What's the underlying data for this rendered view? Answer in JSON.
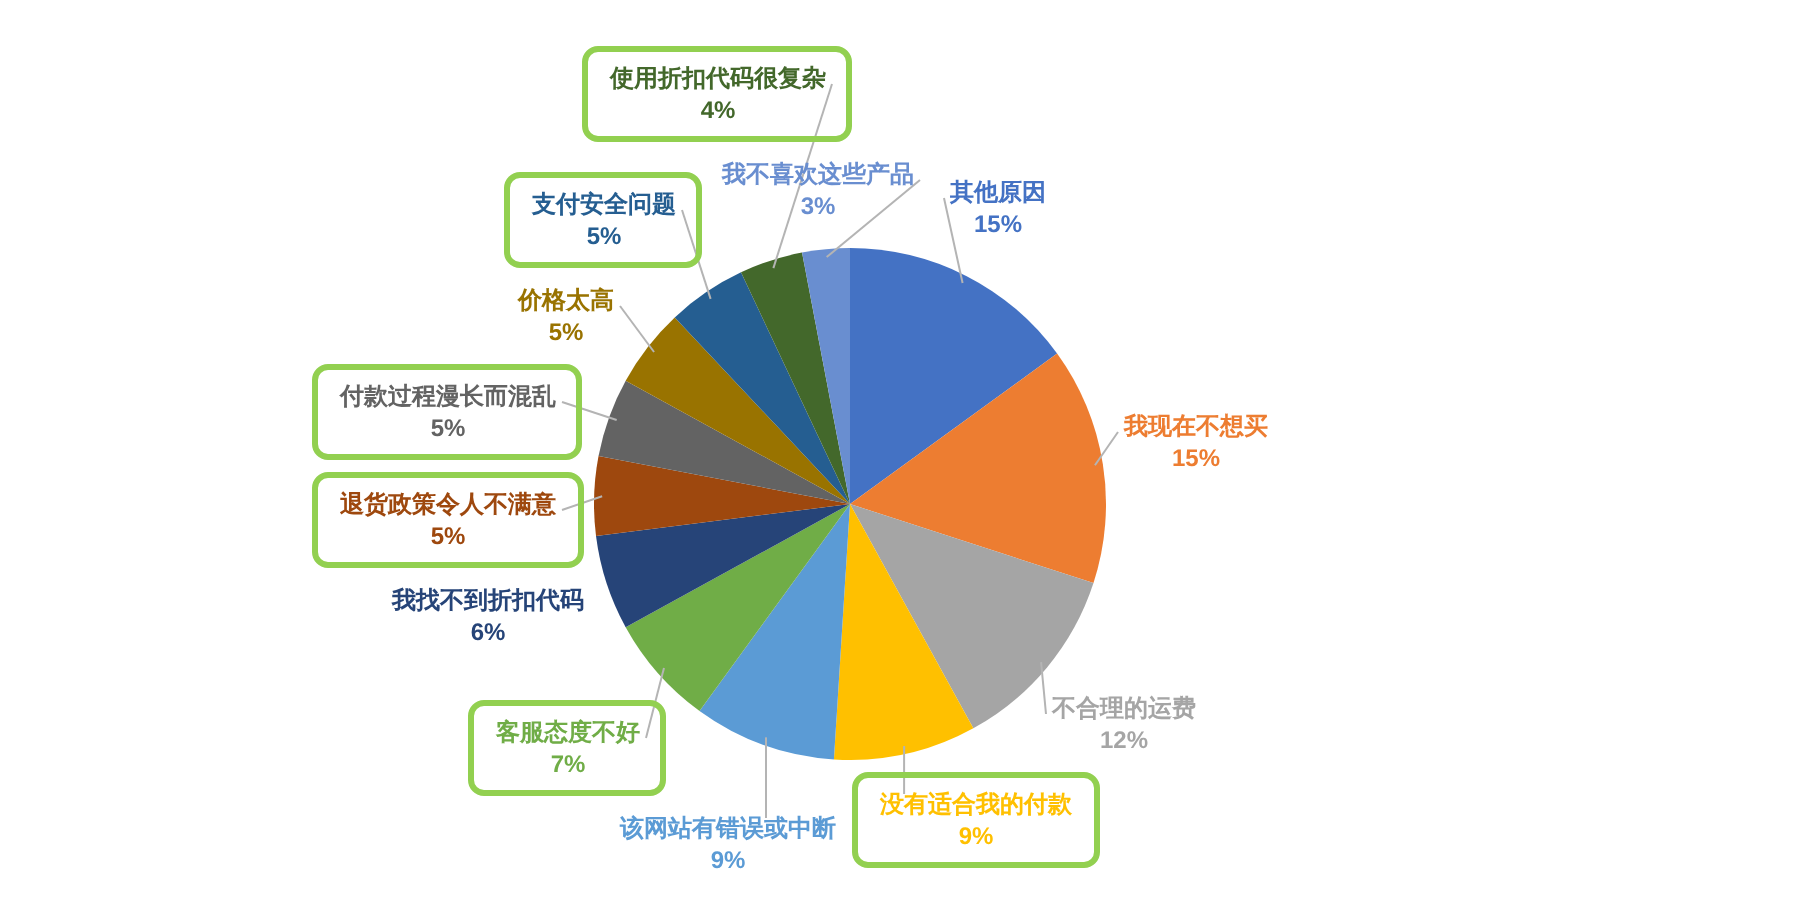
{
  "chart_data": {
    "type": "pie",
    "categories": [
      "其他原因",
      "我现在不想买",
      "不合理的运费",
      "没有适合我的付款",
      "该网站有错误或中断",
      "客服态度不好",
      "我找不到折扣代码",
      "退货政策令人不满意",
      "付款过程漫长而混乱",
      "价格太高",
      "支付安全问题",
      "使用折扣代码很复杂",
      "我不喜欢这些产品"
    ],
    "values": [
      15,
      15,
      12,
      9,
      9,
      7,
      6,
      5,
      5,
      5,
      5,
      4,
      3
    ],
    "value_labels": [
      "15%",
      "15%",
      "12%",
      "9%",
      "9%",
      "7%",
      "6%",
      "5%",
      "5%",
      "5%",
      "5%",
      "4%",
      "3%"
    ],
    "colors": [
      "#4472c4",
      "#ed7d31",
      "#a5a5a5",
      "#ffc000",
      "#5b9bd5",
      "#70ad47",
      "#264478",
      "#9e480e",
      "#636363",
      "#997300",
      "#255e91",
      "#43682b",
      "#698ed0"
    ]
  }
}
